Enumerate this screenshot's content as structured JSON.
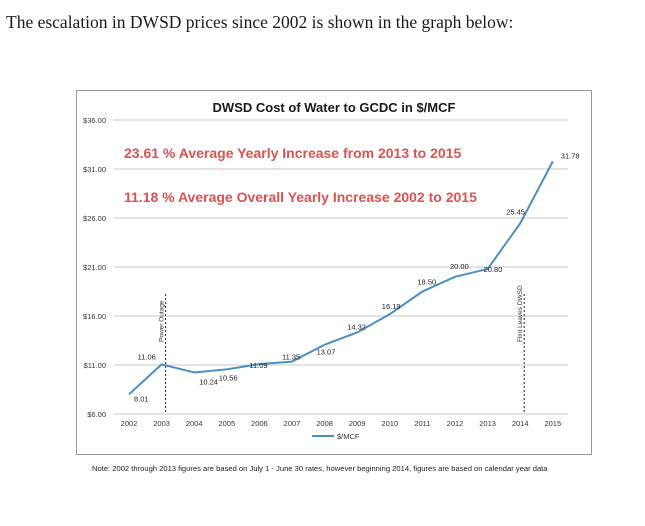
{
  "intro_text": "The escalation in DWSD prices since 2002 is shown in the graph below:",
  "note": "Note:  2002 through 2013 figures are based on July 1 - June 30 rates, however beginning 2014, figures are based on calendar year data",
  "chart_data": {
    "type": "line",
    "title": "DWSD Cost of Water to GCDC in $/MCF",
    "xlabel": "",
    "ylabel": "",
    "categories": [
      "2002",
      "2003",
      "2004",
      "2005",
      "2006",
      "2007",
      "2008",
      "2009",
      "2010",
      "2011",
      "2012",
      "2013",
      "2014",
      "2015"
    ],
    "series": [
      {
        "name": "$/MCF",
        "color": "#4a8ec2",
        "values": [
          8.01,
          11.06,
          10.24,
          10.56,
          11.09,
          11.35,
          13.07,
          14.32,
          16.19,
          18.5,
          20.0,
          20.8,
          25.45,
          31.78
        ],
        "labels": [
          "8.01",
          "11.06",
          "10.24",
          "10.56",
          "11.09",
          "11.35",
          "13.07",
          "14.32",
          "16.19",
          "18.50",
          "20.00",
          "20.80",
          "25.45",
          "31.78"
        ]
      }
    ],
    "ylim": [
      6,
      36
    ],
    "yticks": [
      6,
      11,
      16,
      21,
      26,
      31,
      36
    ],
    "ytick_labels": [
      "$6.00",
      "$11.00",
      "$16.00",
      "$21.00",
      "$26.00",
      "$31.00",
      "$36.00"
    ],
    "grid": true,
    "legend_placement": "bottom-center",
    "annotations": [
      {
        "text": "23.61 % Average Yearly Increase from 2013 to 2015",
        "color": "#d9534f"
      },
      {
        "text": "11.18 % Average Overall Yearly Increase 2002 to 2015",
        "color": "#d9534f"
      },
      {
        "text": "Power Outage",
        "x": "2003"
      },
      {
        "text": "Flint Leaves DWSD",
        "x": "2014"
      }
    ]
  }
}
